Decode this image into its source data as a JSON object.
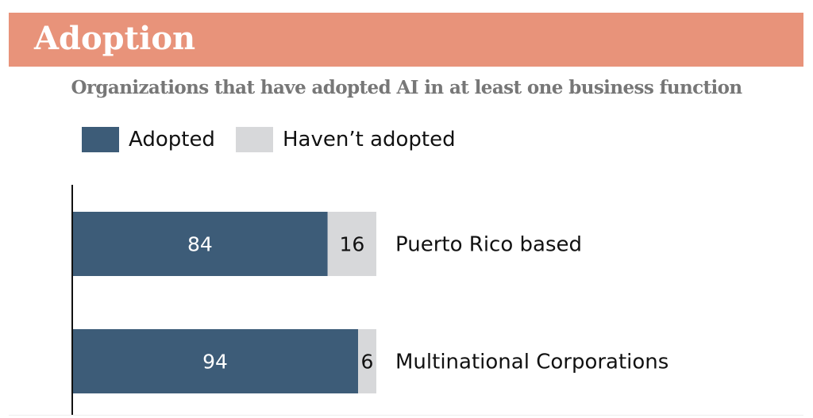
{
  "header": {
    "title": "Adoption"
  },
  "subtitle": "Organizations that have adopted AI in at least one business function",
  "legend": [
    {
      "label": "Adopted",
      "color": "#3d5c78"
    },
    {
      "label": "Haven’t adopted",
      "color": "#d7d8da"
    }
  ],
  "chart_data": {
    "type": "bar",
    "orientation": "horizontal",
    "stacked": true,
    "title": "Organizations that have adopted AI in at least one business function",
    "categories": [
      "Puerto Rico based",
      "Multinational Corporations"
    ],
    "series": [
      {
        "name": "Adopted",
        "values": [
          84,
          94
        ],
        "color": "#3d5c78"
      },
      {
        "name": "Haven’t adopted",
        "values": [
          16,
          6
        ],
        "color": "#d7d8da"
      }
    ],
    "xlim": [
      0,
      100
    ],
    "grid": false,
    "legend_position": "top"
  }
}
